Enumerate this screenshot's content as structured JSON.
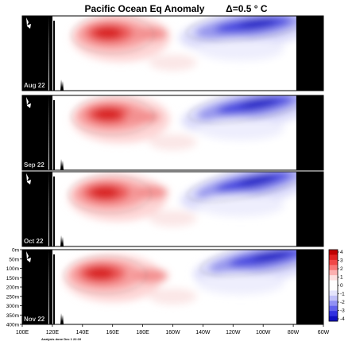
{
  "title": "Pacific Ocean Eq Anomaly        Δ=0.5 ° C",
  "footer": "Analysis done Dec 1 22:10",
  "x_ticks": [
    "100E",
    "120E",
    "140E",
    "160E",
    "180E",
    "160W",
    "140W",
    "120W",
    "100W",
    "80W",
    "60W"
  ],
  "y_ticks": [
    "0m",
    "50m",
    "100m",
    "150m",
    "200m",
    "250m",
    "300m",
    "350m",
    "400m"
  ],
  "colorbar": {
    "ticks": [
      "4",
      "3",
      "2",
      "1",
      "0",
      "-1",
      "-2",
      "-3",
      "-4"
    ],
    "colors": [
      "#c00000",
      "#e02020",
      "#f04848",
      "#f87878",
      "#fcb0b0",
      "#fde0e0",
      "#ffffff",
      "#ffffff",
      "#e4e4fc",
      "#c0c0f8",
      "#9090f4",
      "#6060ec",
      "#3030e0",
      "#1010c0"
    ]
  },
  "chart_data": [
    {
      "type": "heatmap",
      "panel_label": "Aug 22",
      "warm": [
        {
          "lon": 160,
          "depth": 100,
          "value": 3.5
        },
        {
          "lon": 185,
          "depth": 95,
          "value": 2
        }
      ],
      "cool": [
        {
          "lon": 240,
          "depth": 60,
          "value": -3.5
        },
        {
          "lon": 260,
          "depth": 40,
          "value": -2.5
        }
      ]
    },
    {
      "type": "heatmap",
      "panel_label": "Sep 22",
      "warm": [
        {
          "lon": 160,
          "depth": 110,
          "value": 3.5
        },
        {
          "lon": 180,
          "depth": 115,
          "value": 2
        }
      ],
      "cool": [
        {
          "lon": 240,
          "depth": 70,
          "value": -3.5
        },
        {
          "lon": 262,
          "depth": 40,
          "value": -3
        }
      ]
    },
    {
      "type": "heatmap",
      "panel_label": "Oct 22",
      "warm": [
        {
          "lon": 158,
          "depth": 120,
          "value": 3.5
        },
        {
          "lon": 185,
          "depth": 110,
          "value": 2
        }
      ],
      "cool": [
        {
          "lon": 238,
          "depth": 80,
          "value": -3
        },
        {
          "lon": 262,
          "depth": 40,
          "value": -3.5
        }
      ]
    },
    {
      "type": "heatmap",
      "panel_label": "Nov 22",
      "warm": [
        {
          "lon": 155,
          "depth": 135,
          "value": 3
        },
        {
          "lon": 185,
          "depth": 140,
          "value": 1.5
        }
      ],
      "cool": [
        {
          "lon": 250,
          "depth": 60,
          "value": -3
        },
        {
          "lon": 268,
          "depth": 35,
          "value": -3.5
        }
      ]
    }
  ]
}
